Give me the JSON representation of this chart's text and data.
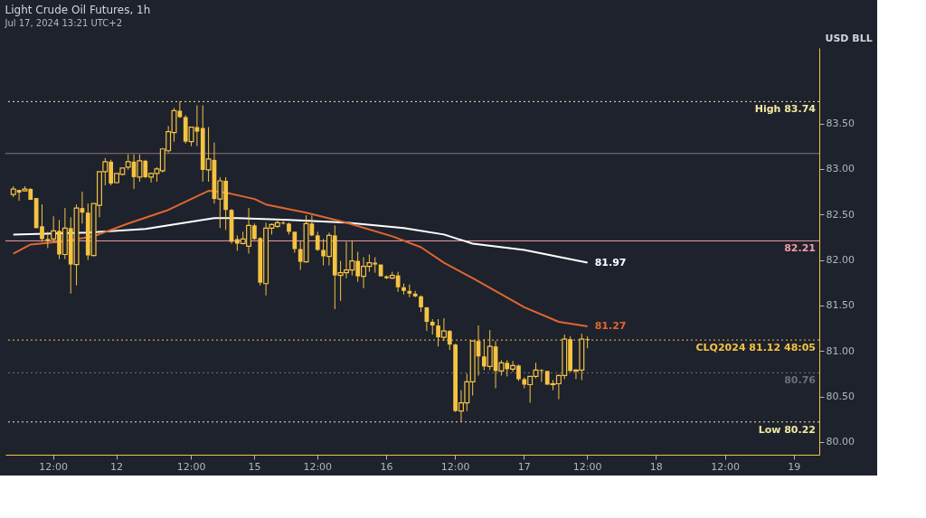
{
  "chart_data": {
    "type": "candlestick",
    "title": "Light Crude Oil Futures, 1h",
    "subtitle": "Jul 17, 2024 13:21 UTC+2",
    "ylabel": "USD BLL",
    "color": "#f5c342",
    "categories": [
      null,
      null,
      null,
      null,
      null,
      null,
      null,
      null,
      "12:00",
      null,
      null,
      null,
      null,
      null,
      null,
      null,
      null,
      null,
      null,
      "12",
      null,
      null,
      null,
      null,
      null,
      null,
      null,
      null,
      null,
      null,
      null,
      null,
      "12:00",
      null,
      null,
      null,
      null,
      null,
      null,
      null,
      null,
      null,
      null,
      "15",
      null,
      null,
      null,
      null,
      null,
      null,
      null,
      null,
      null,
      null,
      "12:00",
      null,
      null,
      null,
      null,
      null,
      null,
      null,
      null,
      null,
      null,
      null,
      "16",
      null,
      null,
      null,
      null,
      null,
      null,
      null,
      null,
      null,
      null,
      null,
      "12:00",
      null,
      null,
      null,
      null,
      null,
      null,
      null,
      null,
      null,
      null,
      null,
      "17",
      null,
      null,
      null,
      null,
      null,
      null,
      null,
      null,
      null,
      null,
      "12:00",
      null,
      null,
      null,
      null,
      null,
      null,
      null,
      null,
      null,
      null,
      null,
      "18",
      null,
      null,
      null,
      null,
      null,
      null,
      null,
      null,
      null,
      null,
      null,
      "12:00",
      null,
      null,
      null,
      null,
      null,
      null,
      null,
      null,
      null,
      null,
      null,
      "19",
      null,
      null,
      null,
      null
    ],
    "ohlc": [
      null,
      [
        82.72,
        82.81,
        82.69,
        82.78
      ],
      [
        82.77,
        82.77,
        82.65,
        82.74
      ],
      [
        82.76,
        82.81,
        82.75,
        82.78
      ],
      [
        82.78,
        82.79,
        82.66,
        82.66
      ],
      [
        82.68,
        82.68,
        82.35,
        82.35
      ],
      [
        82.37,
        82.61,
        82.2,
        82.23
      ],
      [
        82.23,
        82.31,
        82.13,
        82.21
      ],
      [
        82.23,
        82.48,
        82.2,
        82.32
      ],
      [
        82.32,
        82.44,
        82.01,
        82.06
      ],
      [
        82.06,
        82.57,
        82.01,
        82.35
      ],
      [
        82.35,
        82.47,
        81.63,
        81.95
      ],
      [
        81.95,
        82.61,
        81.72,
        82.57
      ],
      [
        82.57,
        82.75,
        82.4,
        82.52
      ],
      [
        82.52,
        82.62,
        82.0,
        82.05
      ],
      [
        82.05,
        82.62,
        82.04,
        82.62
      ],
      [
        82.6,
        82.97,
        82.47,
        82.97
      ],
      [
        82.97,
        83.12,
        82.82,
        83.08
      ],
      [
        83.08,
        83.1,
        82.82,
        82.84
      ],
      [
        82.85,
        82.95,
        82.84,
        82.95
      ],
      [
        82.94,
        83.01,
        82.93,
        83.01
      ],
      [
        83.02,
        83.16,
        82.99,
        83.08
      ],
      [
        83.08,
        83.16,
        82.78,
        82.91
      ],
      [
        82.91,
        83.16,
        82.86,
        83.09
      ],
      [
        83.09,
        83.1,
        82.9,
        82.91
      ],
      [
        82.91,
        82.96,
        82.85,
        82.95
      ],
      [
        82.95,
        83.02,
        82.86,
        83.0
      ],
      [
        82.98,
        83.23,
        82.96,
        83.22
      ],
      [
        83.2,
        83.47,
        83.18,
        83.41
      ],
      [
        83.4,
        83.67,
        83.3,
        83.64
      ],
      [
        83.64,
        83.74,
        83.56,
        83.57
      ],
      [
        83.57,
        83.59,
        83.28,
        83.3
      ],
      [
        83.3,
        83.46,
        83.25,
        83.46
      ],
      [
        83.46,
        83.7,
        83.25,
        83.41
      ],
      [
        83.45,
        83.7,
        82.86,
        82.99
      ],
      [
        82.99,
        83.46,
        82.86,
        83.11
      ],
      [
        83.1,
        83.29,
        82.62,
        82.67
      ],
      [
        82.67,
        82.91,
        82.35,
        82.87
      ],
      [
        82.87,
        82.91,
        82.33,
        82.55
      ],
      [
        82.55,
        82.56,
        82.18,
        82.2
      ],
      [
        82.23,
        82.27,
        82.1,
        82.18
      ],
      [
        82.18,
        82.31,
        82.17,
        82.23
      ],
      [
        82.15,
        82.57,
        82.07,
        82.38
      ],
      [
        82.38,
        82.4,
        82.22,
        82.23
      ],
      [
        82.24,
        82.25,
        81.72,
        81.75
      ],
      [
        81.74,
        82.41,
        81.61,
        82.35
      ],
      [
        82.35,
        82.4,
        82.28,
        82.39
      ],
      [
        82.37,
        82.45,
        82.35,
        82.41
      ],
      [
        82.41,
        82.43,
        82.39,
        82.4
      ],
      [
        82.4,
        82.41,
        82.28,
        82.31
      ],
      [
        82.31,
        82.31,
        82.08,
        82.12
      ],
      [
        82.12,
        82.21,
        81.89,
        81.98
      ],
      [
        81.98,
        82.49,
        81.97,
        82.4
      ],
      [
        82.4,
        82.49,
        82.26,
        82.27
      ],
      [
        82.27,
        82.31,
        82.1,
        82.11
      ],
      [
        82.11,
        82.23,
        81.94,
        82.04
      ],
      [
        82.04,
        82.3,
        81.94,
        82.27
      ],
      [
        82.27,
        82.38,
        81.46,
        81.83
      ],
      [
        81.83,
        81.99,
        81.55,
        81.86
      ],
      [
        81.86,
        82.2,
        81.8,
        81.89
      ],
      [
        81.89,
        82.21,
        81.83,
        81.99
      ],
      [
        81.99,
        82.09,
        81.76,
        81.82
      ],
      [
        81.82,
        82.03,
        81.69,
        81.93
      ],
      [
        81.93,
        82.06,
        81.87,
        81.97
      ],
      [
        81.97,
        82.03,
        81.86,
        81.95
      ],
      [
        81.95,
        81.95,
        81.82,
        81.82
      ],
      [
        81.82,
        81.83,
        81.79,
        81.8
      ],
      [
        81.8,
        81.87,
        81.79,
        81.83
      ],
      [
        81.83,
        81.87,
        81.65,
        81.7
      ],
      [
        81.7,
        81.74,
        81.62,
        81.66
      ],
      [
        81.66,
        81.73,
        81.59,
        81.63
      ],
      [
        81.63,
        81.66,
        81.59,
        81.6
      ],
      [
        81.6,
        81.61,
        81.43,
        81.48
      ],
      [
        81.48,
        81.48,
        81.22,
        81.32
      ],
      [
        81.32,
        81.35,
        81.18,
        81.28
      ],
      [
        81.28,
        81.35,
        81.05,
        81.15
      ],
      [
        81.15,
        81.36,
        81.11,
        81.22
      ],
      [
        81.22,
        81.23,
        81.01,
        81.07
      ],
      [
        81.07,
        81.08,
        80.33,
        80.34
      ],
      [
        80.34,
        80.57,
        80.22,
        80.43
      ],
      [
        80.43,
        80.75,
        80.34,
        80.66
      ],
      [
        80.66,
        81.11,
        80.51,
        81.11
      ],
      [
        81.11,
        81.28,
        80.73,
        80.94
      ],
      [
        80.94,
        81.13,
        80.79,
        80.83
      ],
      [
        80.83,
        81.23,
        80.79,
        81.05
      ],
      [
        81.05,
        81.11,
        80.59,
        80.78
      ],
      [
        80.78,
        80.9,
        80.73,
        80.87
      ],
      [
        80.87,
        80.9,
        80.72,
        80.8
      ],
      [
        80.8,
        80.89,
        80.77,
        80.84
      ],
      [
        80.84,
        80.85,
        80.67,
        80.69
      ],
      [
        80.69,
        80.71,
        80.59,
        80.63
      ],
      [
        80.63,
        80.72,
        80.43,
        80.72
      ],
      [
        80.72,
        80.87,
        80.7,
        80.79
      ],
      [
        80.79,
        80.8,
        80.66,
        80.78
      ],
      [
        80.78,
        80.78,
        80.63,
        80.63
      ],
      [
        80.63,
        80.68,
        80.57,
        80.64
      ],
      [
        80.64,
        80.74,
        80.47,
        80.73
      ],
      [
        80.73,
        81.18,
        80.69,
        81.13
      ],
      [
        81.13,
        81.16,
        80.77,
        80.78
      ],
      [
        80.78,
        80.8,
        80.69,
        80.79
      ],
      [
        80.79,
        81.19,
        80.68,
        81.13
      ],
      [
        81.13,
        81.16,
        81.03,
        81.12
      ],
      null,
      null,
      null,
      null,
      null,
      null,
      null,
      null,
      null,
      null,
      null,
      null,
      null,
      null,
      null,
      null,
      null,
      null,
      null,
      null,
      null,
      null,
      null,
      null,
      null,
      null,
      null,
      null,
      null,
      null,
      null,
      null,
      null,
      null,
      null,
      null,
      null,
      null,
      null,
      null
    ],
    "series": [
      {
        "type": "line",
        "color": "#ffffff",
        "values": [
          null,
          82.28,
          null,
          null,
          null,
          null,
          null,
          null,
          null,
          null,
          null,
          null,
          null,
          null,
          82.3,
          null,
          null,
          null,
          null,
          null,
          null,
          null,
          null,
          null,
          82.34,
          null,
          null,
          null,
          82.38,
          null,
          null,
          null,
          null,
          null,
          null,
          null,
          82.46,
          null,
          null,
          null,
          82.46,
          null,
          null,
          null,
          null,
          null,
          null,
          null,
          null,
          82.44,
          null,
          null,
          null,
          null,
          null,
          null,
          null,
          null,
          null,
          82.41,
          null,
          null,
          null,
          null,
          null,
          null,
          null,
          null,
          null,
          82.35,
          null,
          null,
          null,
          null,
          null,
          null,
          82.28,
          null,
          null,
          null,
          null,
          82.18,
          null,
          null,
          null,
          null,
          null,
          null,
          null,
          null,
          82.11,
          null,
          null,
          null,
          null,
          null,
          null,
          null,
          null,
          null,
          null,
          81.97,
          null,
          null,
          null,
          null,
          null,
          null,
          null,
          null,
          null,
          null,
          null,
          null,
          null,
          null,
          null,
          null,
          null,
          null,
          null,
          null,
          null,
          null,
          null,
          null,
          null,
          null,
          null,
          null,
          null,
          null,
          null,
          null,
          null,
          null,
          null,
          null,
          null,
          null,
          null,
          null
        ],
        "value_labels": [
          null,
          null,
          null,
          null,
          null,
          null,
          null,
          null,
          null,
          null,
          null,
          null,
          null,
          null,
          null,
          null,
          null,
          null,
          null,
          null,
          null,
          null,
          null,
          null,
          null,
          null,
          null,
          null,
          null,
          null,
          null,
          null,
          null,
          null,
          null,
          null,
          null,
          null,
          null,
          null,
          null,
          null,
          null,
          null,
          null,
          null,
          null,
          null,
          null,
          null,
          null,
          null,
          null,
          null,
          null,
          null,
          null,
          null,
          null,
          null,
          null,
          null,
          null,
          null,
          null,
          null,
          null,
          null,
          null,
          null,
          null,
          null,
          null,
          null,
          null,
          null,
          null,
          null,
          null,
          null,
          null,
          null,
          null,
          null,
          null,
          null,
          null,
          null,
          null,
          null,
          null,
          null,
          null,
          null,
          null,
          null,
          null,
          null,
          null,
          null,
          null,
          "81.97",
          null,
          null,
          null,
          null,
          null,
          null,
          null,
          null,
          null,
          null,
          null,
          null,
          null,
          null,
          null,
          null,
          null,
          null,
          null,
          null,
          null,
          null,
          null,
          null,
          null,
          null,
          null,
          null,
          null,
          null,
          null,
          null,
          null,
          null,
          null,
          null,
          null,
          null,
          null,
          null
        ]
      },
      {
        "type": "line",
        "color": "#e0662f",
        "values": [
          null,
          82.07,
          null,
          null,
          82.17,
          null,
          null,
          null,
          null,
          82.2,
          null,
          null,
          null,
          null,
          null,
          82.26,
          null,
          null,
          null,
          null,
          null,
          82.4,
          null,
          null,
          null,
          null,
          null,
          null,
          82.55,
          null,
          null,
          null,
          null,
          null,
          null,
          82.76,
          null,
          null,
          82.74,
          null,
          null,
          null,
          null,
          82.67,
          null,
          82.61,
          null,
          null,
          null,
          null,
          null,
          null,
          82.52,
          null,
          null,
          null,
          null,
          null,
          null,
          82.41,
          null,
          null,
          null,
          null,
          null,
          null,
          null,
          82.26,
          null,
          null,
          null,
          null,
          82.14,
          null,
          null,
          null,
          81.97,
          null,
          null,
          null,
          null,
          81.8,
          null,
          null,
          null,
          null,
          null,
          null,
          null,
          null,
          81.48,
          null,
          null,
          null,
          null,
          null,
          81.32,
          null,
          null,
          null,
          null,
          81.27,
          null,
          null,
          null,
          null,
          null,
          null,
          null,
          null,
          null,
          null,
          null,
          null,
          null,
          null,
          null,
          null,
          null,
          null,
          null,
          null,
          null,
          null,
          null,
          null,
          null,
          null,
          null,
          null,
          null,
          null,
          null,
          null,
          null,
          null,
          null,
          null,
          null,
          null,
          null,
          null
        ],
        "value_labels": [
          null,
          null,
          null,
          null,
          null,
          null,
          null,
          null,
          null,
          null,
          null,
          null,
          null,
          null,
          null,
          null,
          null,
          null,
          null,
          null,
          null,
          null,
          null,
          null,
          null,
          null,
          null,
          null,
          null,
          null,
          null,
          null,
          null,
          null,
          null,
          null,
          null,
          null,
          null,
          null,
          null,
          null,
          null,
          null,
          null,
          null,
          null,
          null,
          null,
          null,
          null,
          null,
          null,
          null,
          null,
          null,
          null,
          null,
          null,
          null,
          null,
          null,
          null,
          null,
          null,
          null,
          null,
          null,
          null,
          null,
          null,
          null,
          null,
          null,
          null,
          null,
          null,
          null,
          null,
          null,
          null,
          null,
          null,
          null,
          null,
          null,
          null,
          null,
          null,
          null,
          null,
          null,
          null,
          null,
          null,
          null,
          null,
          null,
          null,
          null,
          null,
          "81.27",
          null,
          null,
          null,
          null,
          null,
          null,
          null,
          null,
          null,
          null,
          null,
          null,
          null,
          null,
          null,
          null,
          null,
          null,
          null,
          null,
          null,
          null,
          null,
          null,
          null,
          null,
          null,
          null,
          null,
          null,
          null,
          null,
          null,
          null,
          null,
          null,
          null,
          null,
          null,
          null
        ]
      }
    ],
    "ylim": [
      79.86,
      84.33
    ],
    "yticks": [
      {
        "value": 80,
        "label": "80.00"
      },
      {
        "value": 80.5,
        "label": "80.50"
      },
      {
        "value": 81,
        "label": "81.00"
      },
      {
        "value": 81.5,
        "label": "81.50"
      },
      {
        "value": 82,
        "label": "82.00"
      },
      {
        "value": 82.5,
        "label": "82.50"
      },
      {
        "value": 83,
        "label": "83.00"
      },
      {
        "value": 83.5,
        "label": "83.50"
      }
    ],
    "ref_lines": [
      {
        "axis": "y",
        "value": 83.74,
        "label": "High 83.74",
        "color": "#f2e7a0",
        "line_style": "dotted"
      },
      {
        "axis": "y",
        "value": 83.17,
        "color": "#8a7676",
        "line_style": "solid"
      },
      {
        "axis": "y",
        "value": 82.21,
        "label": "82.21",
        "color": "#f29ca6",
        "line_style": "solid"
      },
      {
        "axis": "y",
        "value": 81.12,
        "label": "CLQ2024 81.12 48:05",
        "color": "#f5c342",
        "line_style": "dotted"
      },
      {
        "axis": "y",
        "value": 80.76,
        "label": "80.76",
        "color": "#6b6e78",
        "line_style": "dotted"
      },
      {
        "axis": "y",
        "value": 80.22,
        "label": "Low 80.22",
        "color": "#f2e7a0",
        "line_style": "dotted"
      }
    ]
  }
}
